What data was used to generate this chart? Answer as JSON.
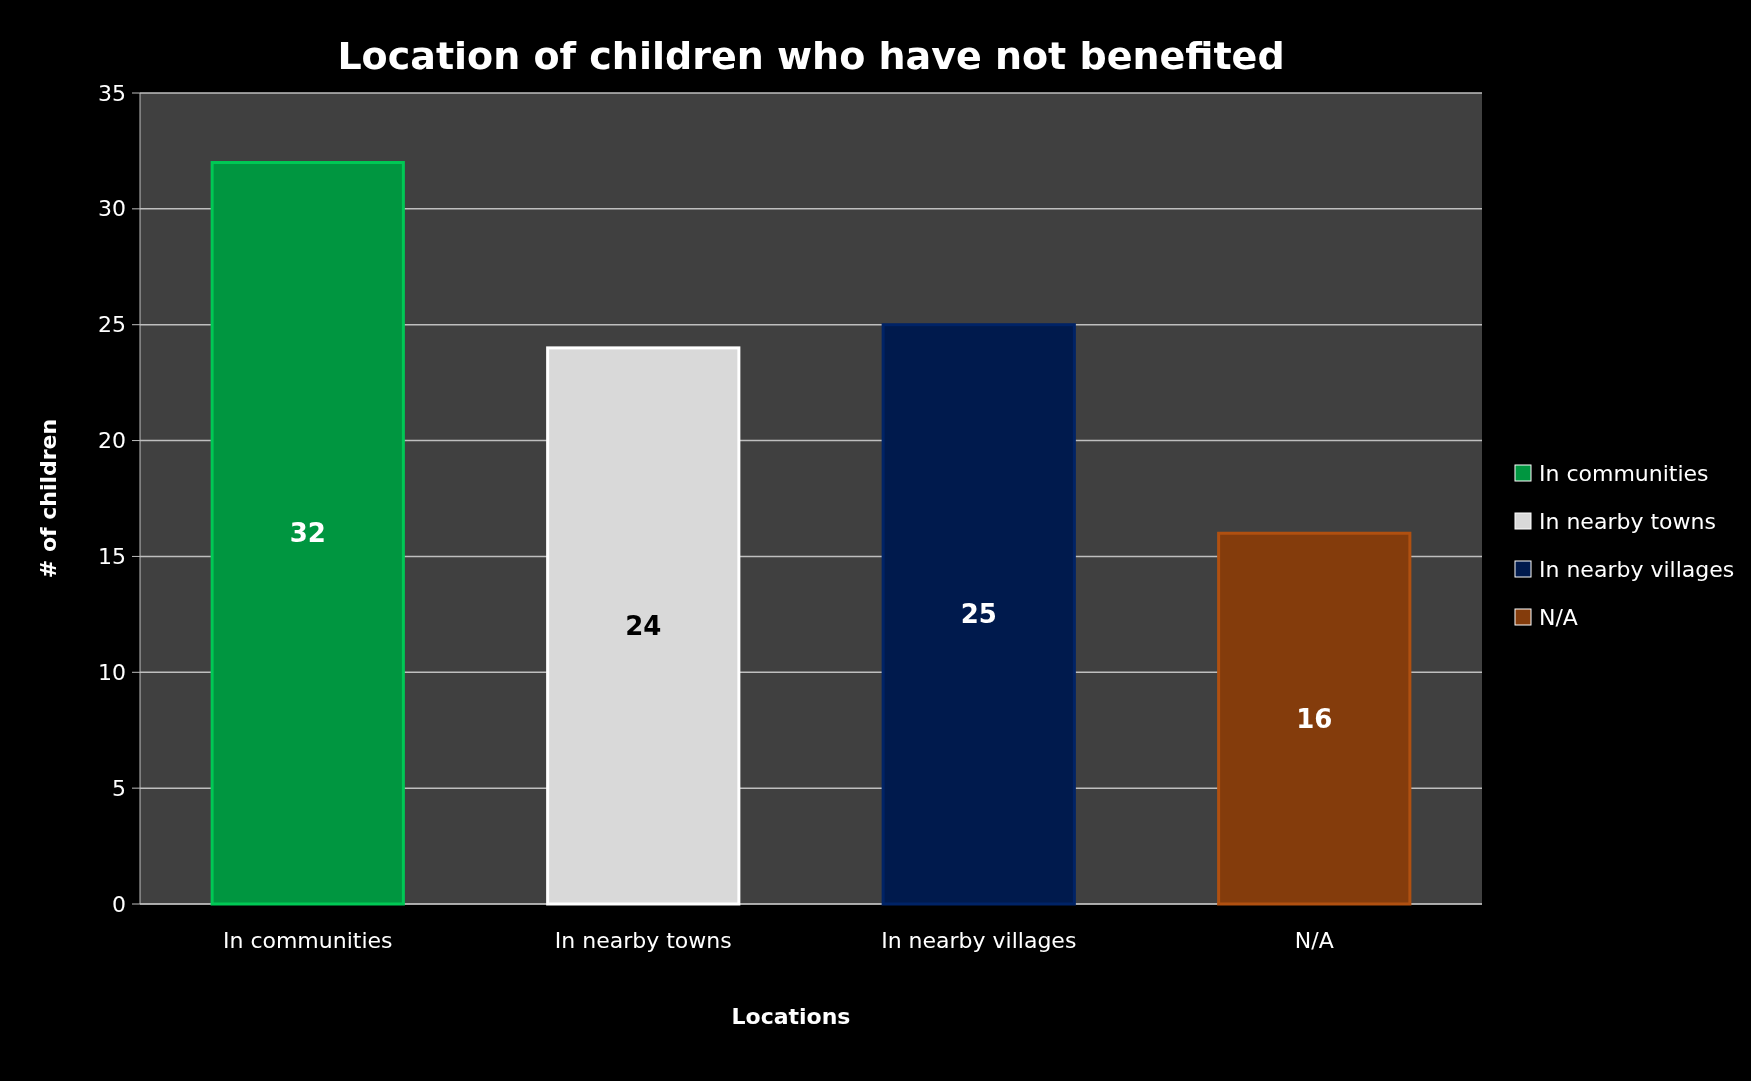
{
  "chart_data": {
    "type": "bar",
    "title": "Location of children who have not benefited",
    "xlabel": "Locations",
    "ylabel": "# of children",
    "categories": [
      "In communities",
      "In nearby towns",
      "In nearby villages",
      "N/A"
    ],
    "series": [
      {
        "name": "In communities",
        "color": "#009640",
        "values": [
          32,
          null,
          null,
          null
        ]
      },
      {
        "name": "In nearby towns",
        "color": "#d9d9d9",
        "values": [
          null,
          24,
          null,
          null
        ]
      },
      {
        "name": "In nearby villages",
        "color": "#001a4d",
        "values": [
          null,
          null,
          25,
          null
        ]
      },
      {
        "name": "N/A",
        "color": "#843c0c",
        "values": [
          null,
          null,
          null,
          16
        ]
      }
    ],
    "stacked": true,
    "ylim": [
      0,
      35
    ],
    "yticks": [
      0,
      5,
      10,
      15,
      20,
      25,
      30,
      35
    ],
    "grid": "y",
    "legend": "right",
    "data_labels": true
  }
}
